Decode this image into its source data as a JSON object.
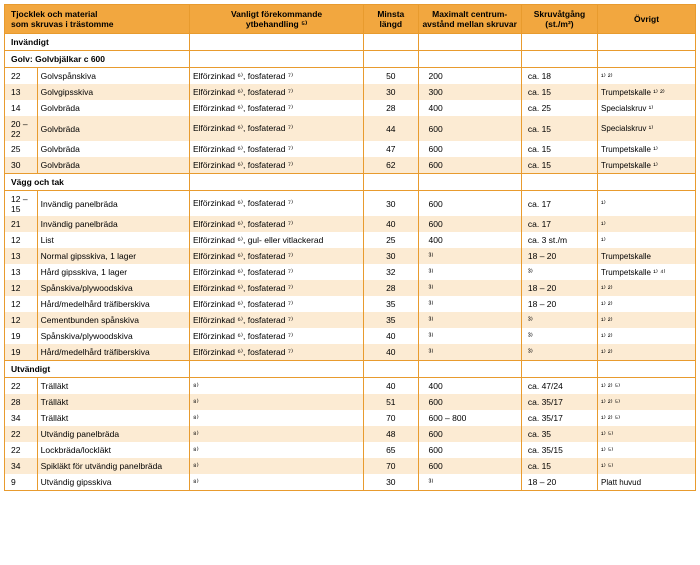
{
  "headers": {
    "col1": "Tjocklek och material\nsom skruvas i trästomme",
    "col2": "Vanligt förekommande\nytbehandling ⁵⁾",
    "col3": "Minsta\nlängd",
    "col4": "Maximalt centrum-\navstånd mellan skruvar",
    "col5": "Skruvåtgång\n(st./m²)",
    "col6": "Övrigt"
  },
  "sections": [
    {
      "title": "Invändigt",
      "subsections": [
        {
          "title": "Golv: Golvbjälkar c 600",
          "rows": [
            {
              "t": "22",
              "m": "Golvspånskiva",
              "tr": "Elförzinkad ⁶⁾, fosfaterad ⁷⁾",
              "l": "50",
              "d": "200",
              "s": "ca. 18",
              "o": "¹⁾ ²⁾"
            },
            {
              "t": "13",
              "m": "Golvgipsskiva",
              "tr": "Elförzinkad ⁶⁾, fosfaterad ⁷⁾",
              "l": "30",
              "d": "300",
              "s": "ca. 15",
              "o": "Trumpetskalle ¹⁾ ²⁾"
            },
            {
              "t": "14",
              "m": "Golvbräda",
              "tr": "Elförzinkad ⁶⁾, fosfaterad ⁷⁾",
              "l": "28",
              "d": "400",
              "s": "ca. 25",
              "o": "Specialskruv ¹⁾"
            },
            {
              "t": "20 – 22",
              "m": "Golvbräda",
              "tr": "Elförzinkad ⁶⁾, fosfaterad ⁷⁾",
              "l": "44",
              "d": "600",
              "s": "ca. 15",
              "o": "Specialskruv ¹⁾"
            },
            {
              "t": "25",
              "m": "Golvbräda",
              "tr": "Elförzinkad ⁶⁾, fosfaterad ⁷⁾",
              "l": "47",
              "d": "600",
              "s": "ca. 15",
              "o": "Trumpetskalle ¹⁾"
            },
            {
              "t": "30",
              "m": "Golvbräda",
              "tr": "Elförzinkad ⁶⁾, fosfaterad ⁷⁾",
              "l": "62",
              "d": "600",
              "s": "ca. 15",
              "o": "Trumpetskalle ¹⁾"
            }
          ]
        },
        {
          "title": "Vägg och tak",
          "rows": [
            {
              "t": "12 – 15",
              "m": "Invändig panelbräda",
              "tr": "Elförzinkad ⁶⁾, fosfaterad ⁷⁾",
              "l": "30",
              "d": "600",
              "s": "ca. 17",
              "o": "¹⁾"
            },
            {
              "t": "21",
              "m": "Invändig panelbräda",
              "tr": "Elförzinkad ⁶⁾, fosfaterad ⁷⁾",
              "l": "40",
              "d": "600",
              "s": "ca. 17",
              "o": "¹⁾"
            },
            {
              "t": "12",
              "m": "List",
              "tr": "Elförzinkad ⁶⁾, gul- eller vitlackerad",
              "l": "25",
              "d": "400",
              "s": "ca. 3 st./m",
              "o": "¹⁾"
            },
            {
              "t": "13",
              "m": "Normal gipsskiva, 1 lager",
              "tr": "Elförzinkad ⁶⁾, fosfaterad ⁷⁾",
              "l": "30",
              "d": "³⁾",
              "s": "18 – 20",
              "o": "Trumpetskalle"
            },
            {
              "t": "13",
              "m": "Hård gipsskiva, 1 lager",
              "tr": "Elförzinkad ⁶⁾, fosfaterad ⁷⁾",
              "l": "32",
              "d": "³⁾",
              "s": "³⁾",
              "o": "Trumpetskalle ¹⁾ ⁴⁾"
            },
            {
              "t": "12",
              "m": "Spånskiva/plywoodskiva",
              "tr": "Elförzinkad ⁶⁾, fosfaterad ⁷⁾",
              "l": "28",
              "d": "³⁾",
              "s": "18 – 20",
              "o": "¹⁾ ²⁾"
            },
            {
              "t": "12",
              "m": "Hård/medelhård träfiberskiva",
              "tr": "Elförzinkad ⁶⁾, fosfaterad ⁷⁾",
              "l": "35",
              "d": "³⁾",
              "s": "18 – 20",
              "o": "¹⁾ ²⁾"
            },
            {
              "t": "12",
              "m": "Cementbunden spånskiva",
              "tr": "Elförzinkad ⁶⁾, fosfaterad ⁷⁾",
              "l": "35",
              "d": "³⁾",
              "s": "³⁾",
              "o": "¹⁾ ²⁾"
            },
            {
              "t": "19",
              "m": "Spånskiva/plywoodskiva",
              "tr": "Elförzinkad ⁶⁾, fosfaterad ⁷⁾",
              "l": "40",
              "d": "³⁾",
              "s": "³⁾",
              "o": "¹⁾ ²⁾"
            },
            {
              "t": "19",
              "m": "Hård/medelhård träfiberskiva",
              "tr": "Elförzinkad ⁶⁾, fosfaterad ⁷⁾",
              "l": "40",
              "d": "³⁾",
              "s": "³⁾",
              "o": "¹⁾ ²⁾"
            }
          ]
        }
      ]
    },
    {
      "title": "Utvändigt",
      "subsections": [
        {
          "title": null,
          "rows": [
            {
              "t": "22",
              "m": "Trälläkt",
              "tr": "⁸⁾",
              "l": "40",
              "d": "400",
              "s": "ca. 47/24",
              "o": "¹⁾ ²⁾ ⁵⁾"
            },
            {
              "t": "28",
              "m": "Trälläkt",
              "tr": "⁸⁾",
              "l": "51",
              "d": "600",
              "s": "ca. 35/17",
              "o": "¹⁾ ²⁾ ⁵⁾"
            },
            {
              "t": "34",
              "m": "Trälläkt",
              "tr": "⁸⁾",
              "l": "70",
              "d": "600 – 800",
              "s": "ca. 35/17",
              "o": "¹⁾ ²⁾ ⁵⁾"
            },
            {
              "t": "22",
              "m": "Utvändig panelbräda",
              "tr": "⁸⁾",
              "l": "48",
              "d": "600",
              "s": "ca. 35",
              "o": "¹⁾ ⁵⁾"
            },
            {
              "t": "22",
              "m": "Lockbräda/lockläkt",
              "tr": "⁸⁾",
              "l": "65",
              "d": "600",
              "s": "ca. 35/15",
              "o": "¹⁾ ⁵⁾"
            },
            {
              "t": "34",
              "m": "Spikläkt för utvändig panelbräda",
              "tr": "⁸⁾",
              "l": "70",
              "d": "600",
              "s": "ca. 15",
              "o": "¹⁾ ⁵⁾"
            },
            {
              "t": "9",
              "m": "Utvändig gipsskiva",
              "tr": "⁸⁾",
              "l": "30",
              "d": "³⁾",
              "s": "18 – 20",
              "o": "Platt huvud"
            }
          ]
        }
      ]
    }
  ]
}
